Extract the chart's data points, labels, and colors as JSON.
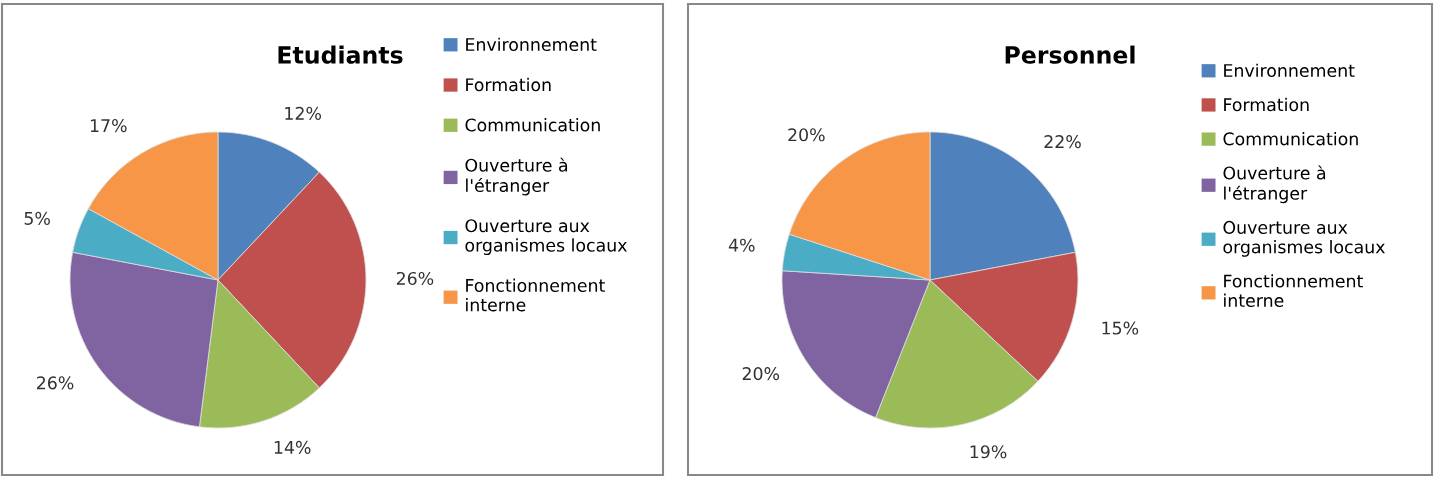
{
  "chart_data": [
    {
      "type": "pie",
      "title": "Etudiants",
      "categories": [
        "Environnement",
        "Formation",
        "Communication",
        "Ouverture à\nl'étranger",
        "Ouverture aux\norganismes locaux",
        "Fonctionnement\ninterne"
      ],
      "values": [
        12,
        26,
        14,
        26,
        5,
        17
      ],
      "value_labels": [
        "12%",
        "26%",
        "14%",
        "26%",
        "5%",
        "17%"
      ],
      "colors": [
        "#4f81bd",
        "#c0504d",
        "#9bbb59",
        "#8064a2",
        "#4bacc6",
        "#f79646"
      ],
      "legend": "right"
    },
    {
      "type": "pie",
      "title": "Personnel",
      "categories": [
        "Environnement",
        "Formation",
        "Communication",
        "Ouverture à\nl'étranger",
        "Ouverture aux\norganismes locaux",
        "Fonctionnement\ninterne"
      ],
      "values": [
        22,
        15,
        19,
        20,
        4,
        20
      ],
      "value_labels": [
        "22%",
        "15%",
        "19%",
        "20%",
        "4%",
        "20%"
      ],
      "colors": [
        "#4f81bd",
        "#c0504d",
        "#9bbb59",
        "#8064a2",
        "#4bacc6",
        "#f79646"
      ],
      "legend": "right"
    }
  ]
}
